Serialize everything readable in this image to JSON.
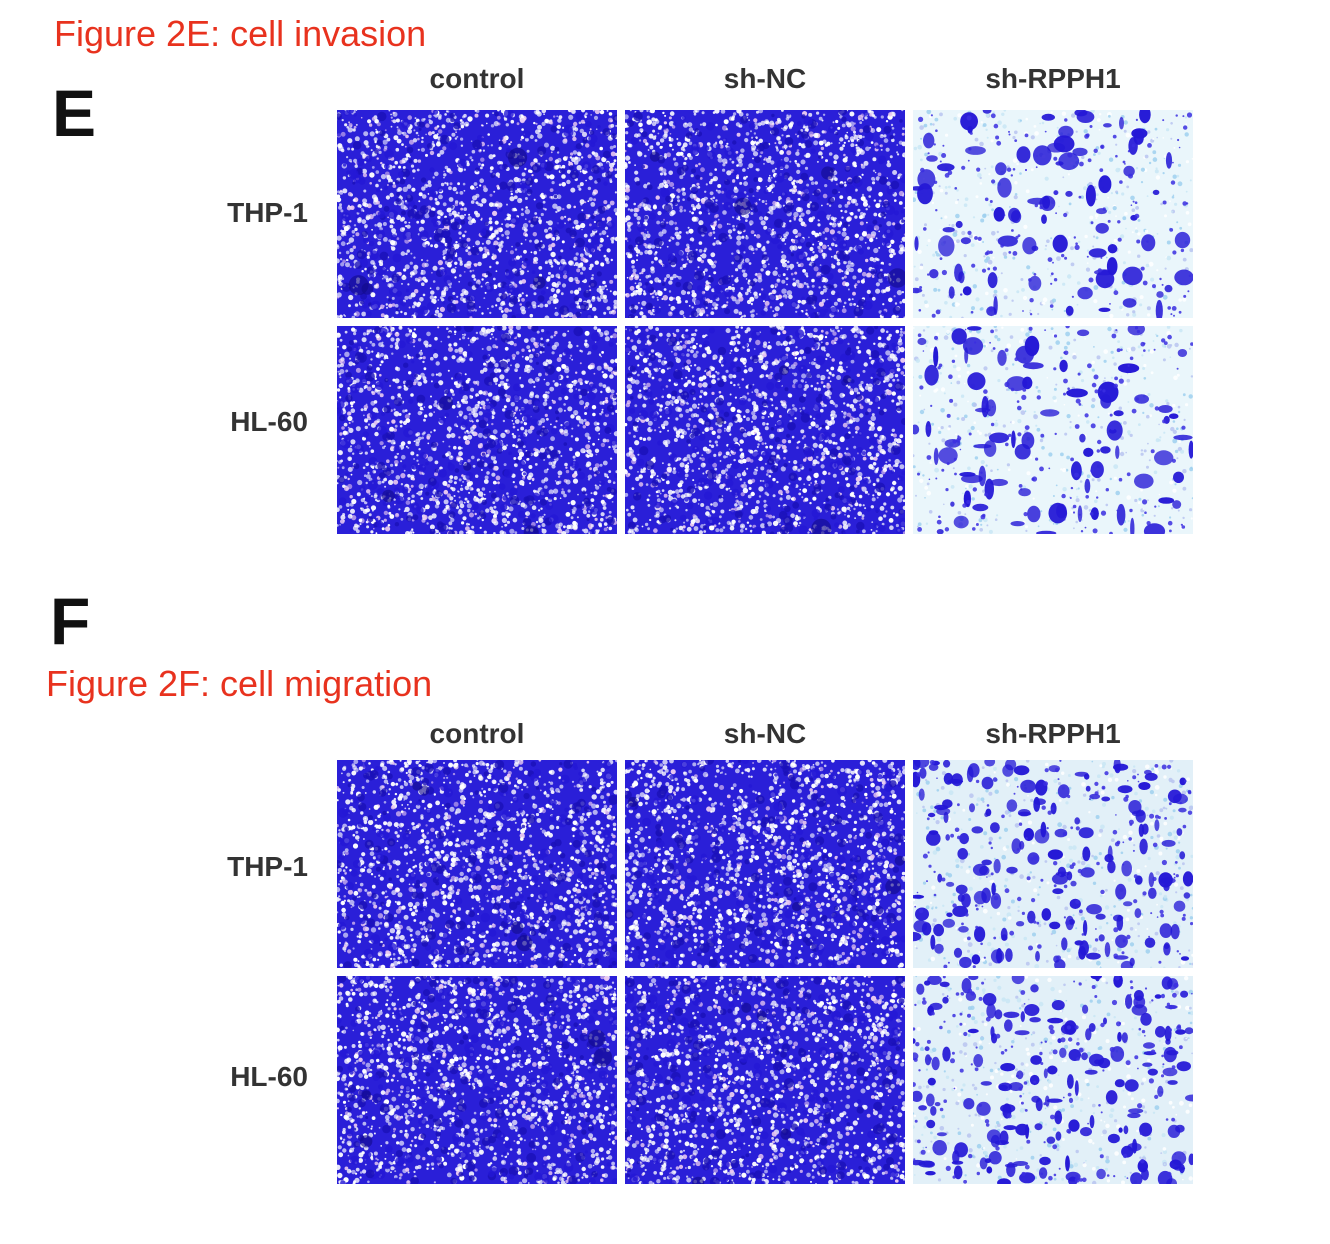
{
  "colors": {
    "caption": "#e8321e",
    "stain": "#2418d6",
    "background": "#ffffff"
  },
  "panel_e": {
    "caption": "Figure 2E: cell invasion",
    "letter": "E",
    "columns": [
      "control",
      "sh-NC",
      "sh-RPPH1"
    ],
    "rows": [
      "THP-1",
      "HL-60"
    ]
  },
  "panel_f": {
    "caption": "Figure 2F: cell migration",
    "letter": "F",
    "columns": [
      "control",
      "sh-NC",
      "sh-RPPH1"
    ],
    "rows": [
      "THP-1",
      "HL-60"
    ]
  }
}
